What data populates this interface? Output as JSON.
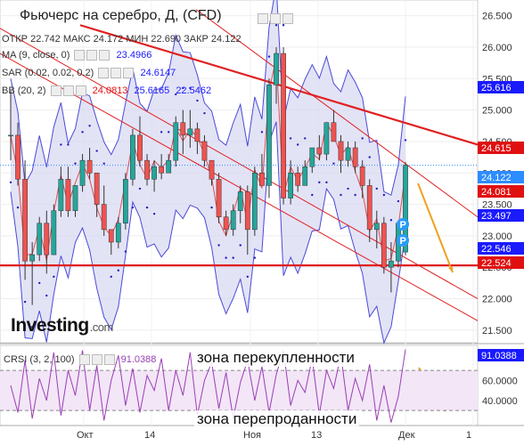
{
  "header": {
    "title": "Фьючерс на серебро, Д, (CFD)",
    "ohlc": [
      {
        "label": "ОТКР",
        "value": "22.742"
      },
      {
        "label": "МАКС",
        "value": "24.172"
      },
      {
        "label": "МИН",
        "value": "22.690"
      },
      {
        "label": "ЗАКР",
        "value": "24.122"
      }
    ]
  },
  "indicators": {
    "ma": {
      "label": "MA (9, close, 0)",
      "value": "23.4966",
      "color": "#1a1aff"
    },
    "sar": {
      "label": "SAR (0.02, 0.02, 0.2)",
      "value": "24.6147",
      "color": "#1a1aff"
    },
    "bb": {
      "label": "BB (20, 2)",
      "values": [
        {
          "v": "24.0813",
          "color": "#e01010"
        },
        {
          "v": "25.6165",
          "color": "#1a1aff"
        },
        {
          "v": "22.5462",
          "color": "#1a1aff"
        }
      ]
    },
    "crsi": {
      "label": "CRSI (3, 2, 100)",
      "value": "91.0388",
      "color": "#9b3fb5"
    }
  },
  "annotations": {
    "overbought": "зона перекупленности",
    "oversold": "зона перепроданности"
  },
  "logo": {
    "brand": "Investing",
    "suffix": ".com"
  },
  "price_labels": [
    {
      "value": "25.616",
      "color": "#1a1aff"
    },
    {
      "value": "24.615",
      "color": "#e01010"
    },
    {
      "value": "24.122",
      "color": "#2d8cff"
    },
    {
      "value": "24.081",
      "color": "#e01010"
    },
    {
      "value": "23.497",
      "color": "#1a1aff"
    },
    {
      "value": "22.546",
      "color": "#1a1aff"
    },
    {
      "value": "22.524",
      "color": "#e01010"
    },
    {
      "value": "91.0388",
      "color": "#1a1aff"
    }
  ],
  "markers": [
    "P",
    "P"
  ],
  "chart_data": [
    {
      "type": "candlestick",
      "title": "Фьючерс на серебро, Д, (CFD)",
      "y_ticks": [
        "26.500",
        "26.000",
        "25.500",
        "25.000",
        "24.500",
        "24.000",
        "23.500",
        "23.000",
        "22.500",
        "22.000",
        "21.500"
      ],
      "ylim": [
        21.3,
        26.75
      ],
      "x_ticks": [
        "Окт",
        "14",
        "Ноя",
        "13",
        "Дек",
        "1"
      ],
      "up_color": "#26a69a",
      "down_color": "#ef5350",
      "series": [
        {
          "name": "price",
          "ohlc": [
            [
              24.6,
              25.3,
              24.2,
              24.6
            ],
            [
              24.6,
              24.8,
              23.8,
              23.9
            ],
            [
              23.9,
              24.2,
              22.3,
              22.6
            ],
            [
              22.6,
              22.9,
              21.9,
              22.7
            ],
            [
              22.7,
              23.3,
              22.6,
              23.2
            ],
            [
              23.2,
              23.4,
              22.4,
              22.7
            ],
            [
              22.7,
              23.5,
              22.7,
              23.4
            ],
            [
              23.4,
              24.1,
              23.3,
              23.9
            ],
            [
              23.9,
              24.1,
              23.3,
              23.4
            ],
            [
              23.4,
              23.8,
              23.3,
              23.8
            ],
            [
              23.8,
              24.3,
              23.7,
              24.2
            ],
            [
              24.2,
              24.4,
              23.9,
              24.0
            ],
            [
              24.0,
              24.0,
              23.3,
              23.5
            ],
            [
              23.5,
              23.8,
              23.0,
              23.1
            ],
            [
              23.1,
              23.1,
              22.7,
              22.9
            ],
            [
              22.9,
              23.3,
              22.8,
              23.2
            ],
            [
              23.2,
              24.0,
              23.1,
              23.9
            ],
            [
              23.9,
              24.7,
              23.8,
              24.6
            ],
            [
              24.6,
              24.9,
              24.1,
              24.2
            ],
            [
              24.2,
              24.3,
              23.8,
              23.9
            ],
            [
              23.9,
              24.2,
              23.7,
              24.1
            ],
            [
              24.1,
              24.3,
              23.9,
              24.0
            ],
            [
              24.0,
              24.3,
              24.0,
              24.2
            ],
            [
              24.2,
              24.9,
              24.1,
              24.8
            ],
            [
              24.8,
              25.0,
              24.3,
              24.6
            ],
            [
              24.6,
              25.0,
              24.4,
              24.7
            ],
            [
              24.7,
              24.8,
              24.3,
              24.5
            ],
            [
              24.5,
              24.6,
              24.1,
              24.2
            ],
            [
              24.2,
              24.2,
              23.8,
              23.9
            ],
            [
              23.9,
              24.0,
              23.2,
              23.3
            ],
            [
              23.3,
              23.4,
              23.0,
              23.1
            ],
            [
              23.1,
              23.5,
              23.0,
              23.4
            ],
            [
              23.4,
              23.8,
              23.2,
              23.7
            ],
            [
              23.7,
              23.8,
              22.7,
              23.1
            ],
            [
              23.1,
              24.1,
              23.0,
              24.0
            ],
            [
              24.0,
              24.3,
              23.8,
              23.8
            ],
            [
              23.8,
              25.5,
              23.6,
              25.4
            ],
            [
              25.4,
              26.0,
              25.1,
              25.9
            ],
            [
              25.9,
              26.0,
              23.5,
              23.6
            ],
            [
              23.6,
              24.2,
              23.5,
              24.0
            ],
            [
              24.0,
              24.1,
              23.7,
              23.8
            ],
            [
              23.8,
              24.2,
              23.8,
              24.1
            ],
            [
              24.1,
              24.4,
              24.0,
              24.4
            ],
            [
              24.4,
              24.6,
              24.2,
              24.3
            ],
            [
              24.3,
              24.8,
              24.2,
              24.8
            ],
            [
              24.8,
              25.0,
              24.5,
              24.5
            ],
            [
              24.5,
              24.6,
              24.0,
              24.2
            ],
            [
              24.2,
              24.5,
              24.1,
              24.4
            ],
            [
              24.4,
              24.5,
              24.0,
              24.1
            ],
            [
              24.1,
              24.2,
              23.6,
              23.8
            ],
            [
              23.8,
              23.9,
              22.9,
              23.1
            ],
            [
              23.1,
              23.4,
              22.8,
              23.2
            ],
            [
              23.2,
              23.3,
              22.4,
              22.5
            ],
            [
              22.5,
              22.9,
              22.1,
              22.6
            ],
            [
              22.6,
              23.2,
              22.5,
              23.2
            ],
            [
              22.742,
              24.172,
              22.69,
              24.122
            ]
          ]
        }
      ]
    },
    {
      "type": "line",
      "title": "CRSI (3, 2, 100)",
      "y_ticks": [
        "40.0000",
        "60.0000"
      ],
      "levels": [
        30,
        70
      ],
      "series": [
        {
          "name": "CRSI",
          "color": "#9b3fb5",
          "values": [
            55,
            28,
            80,
            22,
            62,
            40,
            88,
            25,
            70,
            45,
            90,
            30,
            75,
            20,
            60,
            85,
            35,
            72,
            28,
            65,
            50,
            82,
            30,
            70,
            45,
            88,
            25,
            60,
            78,
            32,
            68,
            22,
            58,
            80,
            40,
            74,
            28,
            66,
            90,
            35,
            60,
            48,
            82,
            26,
            70,
            52,
            86,
            30,
            62,
            40,
            76,
            20,
            55,
            18,
            44,
            91.0388
          ]
        }
      ]
    }
  ]
}
